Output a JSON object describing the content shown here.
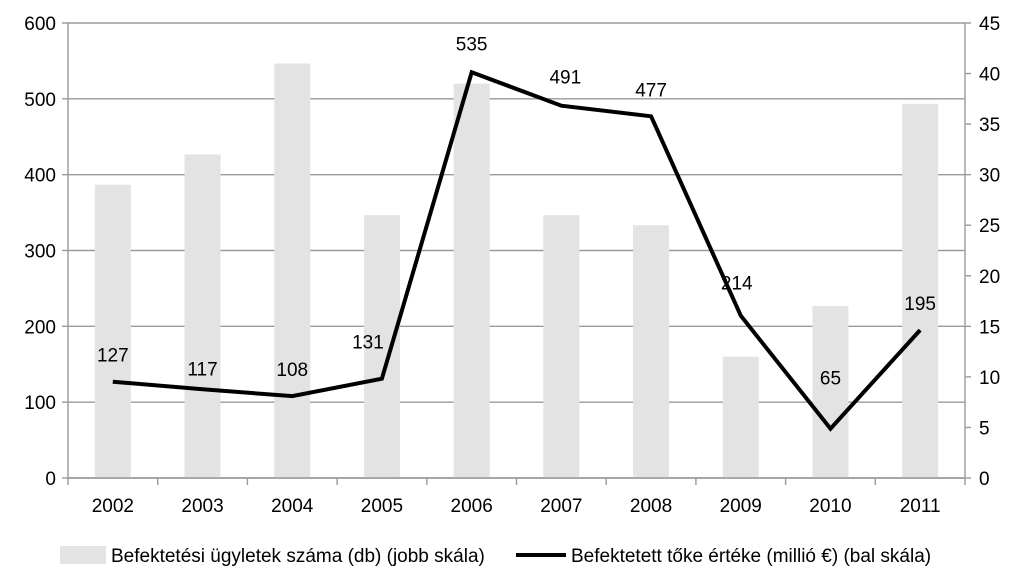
{
  "chart_data": {
    "type": "bar",
    "categories": [
      "2002",
      "2003",
      "2004",
      "2005",
      "2006",
      "2007",
      "2008",
      "2009",
      "2010",
      "2011"
    ],
    "series": [
      {
        "name": "Befektetési ügyletek száma (db) (jobb skála)",
        "type": "bar",
        "axis": "right",
        "color": "#e3e3e3",
        "values": [
          29,
          32,
          41,
          26,
          39,
          26,
          25,
          12,
          17,
          37
        ]
      },
      {
        "name": "Befektetett tőke értéke (millió €) (bal skála)",
        "type": "line",
        "axis": "left",
        "color": "#000000",
        "values": [
          127,
          117,
          108,
          131,
          535,
          491,
          477,
          214,
          65,
          195
        ],
        "data_labels": [
          "127",
          "117",
          "108",
          "131",
          "535",
          "491",
          "477",
          "214",
          "65",
          "195"
        ]
      }
    ],
    "y_left": {
      "ylim": [
        0,
        600
      ],
      "ticks": [
        "0",
        "100",
        "200",
        "300",
        "400",
        "500",
        "600"
      ]
    },
    "y_right": {
      "ylim": [
        0,
        45
      ],
      "ticks": [
        "0",
        "5",
        "10",
        "15",
        "20",
        "25",
        "30",
        "35",
        "40",
        "45"
      ]
    },
    "title": "",
    "xlabel": "",
    "ylabel": "",
    "grid": true,
    "legend_position": "bottom"
  }
}
